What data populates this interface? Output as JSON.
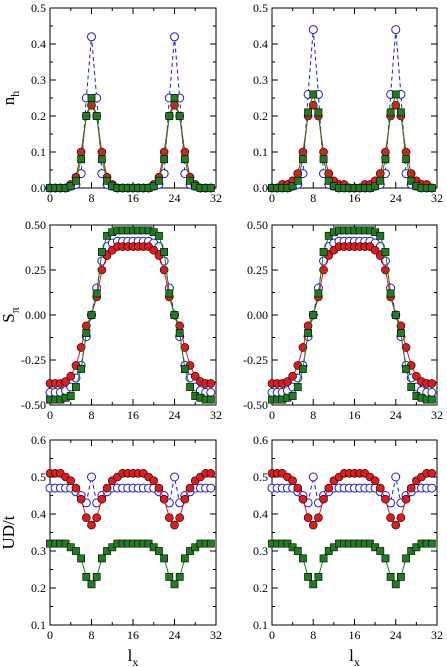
{
  "chart_data": [
    {
      "type": "line",
      "panel": "top-left",
      "ylabel": "n",
      "ylabel_sub": "h",
      "xlim": [
        0,
        32
      ],
      "ylim": [
        0.0,
        0.5
      ],
      "xticks": [
        "0",
        "8",
        "16",
        "24",
        "32"
      ],
      "yticks": [
        "0.0",
        "0.1",
        "0.2",
        "0.3",
        "0.4",
        "0.5"
      ],
      "x": [
        0,
        1,
        2,
        3,
        4,
        5,
        6,
        7,
        8,
        9,
        10,
        11,
        12,
        13,
        14,
        15,
        16,
        17,
        18,
        19,
        20,
        21,
        22,
        23,
        24,
        25,
        26,
        27,
        28,
        29,
        30,
        31
      ],
      "series": [
        {
          "marker": "circle-open",
          "color": "#1a1adc",
          "linestyle": "dashed",
          "values": [
            0.0,
            0.0,
            0.0,
            0.0,
            0.005,
            0.01,
            0.04,
            0.25,
            0.42,
            0.25,
            0.04,
            0.01,
            0.005,
            0.0,
            0.0,
            0.0,
            0.0,
            0.0,
            0.0,
            0.0,
            0.005,
            0.01,
            0.04,
            0.25,
            0.42,
            0.25,
            0.04,
            0.01,
            0.005,
            0.0,
            0.0,
            0.0
          ]
        },
        {
          "marker": "circle-filled",
          "color": "#e31a1c",
          "linestyle": "solid",
          "values": [
            0.0,
            0.0,
            0.0,
            0.0,
            0.01,
            0.03,
            0.1,
            0.2,
            0.23,
            0.2,
            0.1,
            0.03,
            0.01,
            0.0,
            0.0,
            0.0,
            0.0,
            0.0,
            0.0,
            0.0,
            0.01,
            0.03,
            0.1,
            0.2,
            0.23,
            0.2,
            0.1,
            0.03,
            0.01,
            0.0,
            0.0,
            0.0
          ]
        },
        {
          "marker": "square-filled",
          "color": "#1e7d1e",
          "linestyle": "solid",
          "values": [
            0.0,
            0.0,
            0.0,
            0.0,
            0.005,
            0.02,
            0.08,
            0.2,
            0.25,
            0.2,
            0.08,
            0.02,
            0.005,
            0.0,
            0.0,
            0.0,
            0.0,
            0.0,
            0.0,
            0.0,
            0.005,
            0.02,
            0.08,
            0.2,
            0.25,
            0.2,
            0.08,
            0.02,
            0.005,
            0.0,
            0.0,
            0.0
          ]
        }
      ]
    },
    {
      "type": "line",
      "panel": "top-right",
      "xlim": [
        0,
        32
      ],
      "ylim": [
        0.0,
        0.5
      ],
      "xticks": [
        "0",
        "8",
        "16",
        "24",
        "32"
      ],
      "yticks": [
        "0.0",
        "0.1",
        "0.2",
        "0.3",
        "0.4",
        "0.5"
      ],
      "x": [
        0,
        1,
        2,
        3,
        4,
        5,
        6,
        7,
        8,
        9,
        10,
        11,
        12,
        13,
        14,
        15,
        16,
        17,
        18,
        19,
        20,
        21,
        22,
        23,
        24,
        25,
        26,
        27,
        28,
        29,
        30,
        31
      ],
      "series": [
        {
          "marker": "circle-open",
          "color": "#1a1adc",
          "linestyle": "dashed",
          "values": [
            0.0,
            0.0,
            0.0,
            0.0,
            0.005,
            0.01,
            0.04,
            0.26,
            0.44,
            0.26,
            0.04,
            0.01,
            0.005,
            0.0,
            0.0,
            0.0,
            0.0,
            0.0,
            0.0,
            0.0,
            0.005,
            0.01,
            0.04,
            0.26,
            0.44,
            0.26,
            0.04,
            0.01,
            0.005,
            0.0,
            0.0,
            0.0
          ]
        },
        {
          "marker": "circle-filled",
          "color": "#e31a1c",
          "linestyle": "solid",
          "values": [
            0.0,
            0.0,
            0.01,
            0.01,
            0.02,
            0.04,
            0.1,
            0.2,
            0.23,
            0.2,
            0.1,
            0.04,
            0.02,
            0.01,
            0.01,
            0.0,
            0.0,
            0.0,
            0.01,
            0.01,
            0.02,
            0.04,
            0.1,
            0.2,
            0.23,
            0.2,
            0.1,
            0.04,
            0.02,
            0.01,
            0.01,
            0.0
          ]
        },
        {
          "marker": "square-filled",
          "color": "#1e7d1e",
          "linestyle": "solid",
          "values": [
            0.0,
            0.0,
            0.0,
            0.0,
            0.005,
            0.02,
            0.08,
            0.21,
            0.26,
            0.21,
            0.08,
            0.02,
            0.005,
            0.0,
            0.0,
            0.0,
            0.0,
            0.0,
            0.0,
            0.0,
            0.005,
            0.02,
            0.08,
            0.21,
            0.26,
            0.21,
            0.08,
            0.02,
            0.005,
            0.0,
            0.0,
            0.0
          ]
        }
      ]
    },
    {
      "type": "line",
      "panel": "middle-left",
      "ylabel": "S",
      "ylabel_sub": "π",
      "xlim": [
        0,
        32
      ],
      "ylim": [
        -0.5,
        0.5
      ],
      "xticks": [
        "0",
        "8",
        "16",
        "24",
        "32"
      ],
      "yticks": [
        "-0.50",
        "-0.25",
        "0.00",
        "0.25",
        "0.50"
      ],
      "x": [
        0,
        1,
        2,
        3,
        4,
        5,
        6,
        7,
        8,
        9,
        10,
        11,
        12,
        13,
        14,
        15,
        16,
        17,
        18,
        19,
        20,
        21,
        22,
        23,
        24,
        25,
        26,
        27,
        28,
        29,
        30,
        31
      ],
      "series": [
        {
          "marker": "circle-open",
          "color": "#1a1adc",
          "linestyle": "dashed",
          "values": [
            -0.43,
            -0.43,
            -0.43,
            -0.42,
            -0.4,
            -0.35,
            -0.28,
            -0.12,
            0.0,
            0.15,
            0.3,
            0.38,
            0.4,
            0.41,
            0.41,
            0.41,
            0.41,
            0.41,
            0.41,
            0.41,
            0.4,
            0.38,
            0.3,
            0.15,
            0.0,
            -0.12,
            -0.28,
            -0.35,
            -0.4,
            -0.42,
            -0.43,
            -0.43
          ]
        },
        {
          "marker": "circle-filled",
          "color": "#e31a1c",
          "linestyle": "solid",
          "values": [
            -0.38,
            -0.38,
            -0.38,
            -0.37,
            -0.34,
            -0.28,
            -0.18,
            -0.06,
            0.0,
            0.1,
            0.25,
            0.33,
            0.36,
            0.38,
            0.38,
            0.38,
            0.38,
            0.38,
            0.38,
            0.38,
            0.36,
            0.33,
            0.25,
            0.1,
            0.0,
            -0.06,
            -0.18,
            -0.28,
            -0.34,
            -0.37,
            -0.38,
            -0.38
          ]
        },
        {
          "marker": "square-filled",
          "color": "#1e7d1e",
          "linestyle": "solid",
          "values": [
            -0.47,
            -0.47,
            -0.47,
            -0.46,
            -0.45,
            -0.4,
            -0.3,
            -0.1,
            0.0,
            0.12,
            0.35,
            0.44,
            0.46,
            0.47,
            0.47,
            0.47,
            0.47,
            0.47,
            0.47,
            0.47,
            0.46,
            0.44,
            0.35,
            0.12,
            0.0,
            -0.1,
            -0.3,
            -0.4,
            -0.45,
            -0.46,
            -0.47,
            -0.47
          ]
        }
      ]
    },
    {
      "type": "line",
      "panel": "middle-right",
      "xlim": [
        0,
        32
      ],
      "ylim": [
        -0.5,
        0.5
      ],
      "xticks": [
        "0",
        "8",
        "16",
        "24",
        "32"
      ],
      "yticks": [
        "-0.50",
        "-0.25",
        "0.00",
        "0.25",
        "0.50"
      ],
      "x": [
        0,
        1,
        2,
        3,
        4,
        5,
        6,
        7,
        8,
        9,
        10,
        11,
        12,
        13,
        14,
        15,
        16,
        17,
        18,
        19,
        20,
        21,
        22,
        23,
        24,
        25,
        26,
        27,
        28,
        29,
        30,
        31
      ],
      "series": [
        {
          "marker": "circle-open",
          "color": "#1a1adc",
          "linestyle": "dashed",
          "values": [
            -0.43,
            -0.43,
            -0.43,
            -0.42,
            -0.4,
            -0.35,
            -0.28,
            -0.12,
            0.0,
            0.15,
            0.3,
            0.38,
            0.4,
            0.41,
            0.41,
            0.41,
            0.41,
            0.41,
            0.41,
            0.41,
            0.4,
            0.38,
            0.3,
            0.15,
            0.0,
            -0.12,
            -0.28,
            -0.35,
            -0.4,
            -0.42,
            -0.43,
            -0.43
          ]
        },
        {
          "marker": "circle-filled",
          "color": "#e31a1c",
          "linestyle": "solid",
          "values": [
            -0.38,
            -0.38,
            -0.38,
            -0.37,
            -0.34,
            -0.28,
            -0.18,
            -0.06,
            0.0,
            0.1,
            0.25,
            0.33,
            0.36,
            0.38,
            0.38,
            0.38,
            0.38,
            0.38,
            0.38,
            0.38,
            0.36,
            0.33,
            0.25,
            0.1,
            0.0,
            -0.06,
            -0.18,
            -0.28,
            -0.34,
            -0.37,
            -0.38,
            -0.38
          ]
        },
        {
          "marker": "square-filled",
          "color": "#1e7d1e",
          "linestyle": "solid",
          "values": [
            -0.47,
            -0.47,
            -0.47,
            -0.46,
            -0.45,
            -0.4,
            -0.3,
            -0.1,
            0.0,
            0.12,
            0.35,
            0.44,
            0.46,
            0.47,
            0.47,
            0.47,
            0.47,
            0.47,
            0.47,
            0.47,
            0.46,
            0.44,
            0.35,
            0.12,
            0.0,
            -0.1,
            -0.3,
            -0.4,
            -0.45,
            -0.46,
            -0.47,
            -0.47
          ]
        }
      ]
    },
    {
      "type": "line",
      "panel": "bottom-left",
      "ylabel": "UD/t",
      "xlabel": "l",
      "xlabel_sub": "x",
      "xlim": [
        0,
        32
      ],
      "ylim": [
        0.1,
        0.6
      ],
      "xticks": [
        "0",
        "8",
        "16",
        "24",
        "32"
      ],
      "yticks": [
        "0.1",
        "0.2",
        "0.3",
        "0.4",
        "0.5",
        "0.6"
      ],
      "x": [
        0,
        1,
        2,
        3,
        4,
        5,
        6,
        7,
        8,
        9,
        10,
        11,
        12,
        13,
        14,
        15,
        16,
        17,
        18,
        19,
        20,
        21,
        22,
        23,
        24,
        25,
        26,
        27,
        28,
        29,
        30,
        31
      ],
      "series": [
        {
          "marker": "circle-open",
          "color": "#1a1adc",
          "linestyle": "dashed",
          "values": [
            0.47,
            0.47,
            0.47,
            0.47,
            0.47,
            0.46,
            0.45,
            0.43,
            0.5,
            0.43,
            0.45,
            0.46,
            0.47,
            0.47,
            0.47,
            0.47,
            0.47,
            0.47,
            0.47,
            0.47,
            0.47,
            0.46,
            0.45,
            0.43,
            0.5,
            0.43,
            0.45,
            0.46,
            0.47,
            0.47,
            0.47,
            0.47
          ]
        },
        {
          "marker": "circle-filled",
          "color": "#e31a1c",
          "linestyle": "solid",
          "values": [
            0.51,
            0.51,
            0.51,
            0.5,
            0.49,
            0.47,
            0.44,
            0.39,
            0.37,
            0.39,
            0.44,
            0.47,
            0.49,
            0.5,
            0.51,
            0.51,
            0.51,
            0.51,
            0.51,
            0.5,
            0.49,
            0.47,
            0.44,
            0.39,
            0.37,
            0.39,
            0.44,
            0.47,
            0.49,
            0.5,
            0.51,
            0.51
          ]
        },
        {
          "marker": "square-filled",
          "color": "#1e7d1e",
          "linestyle": "solid",
          "values": [
            0.32,
            0.32,
            0.32,
            0.32,
            0.31,
            0.3,
            0.28,
            0.23,
            0.21,
            0.23,
            0.28,
            0.3,
            0.31,
            0.32,
            0.32,
            0.32,
            0.32,
            0.32,
            0.32,
            0.32,
            0.31,
            0.3,
            0.28,
            0.23,
            0.21,
            0.23,
            0.28,
            0.3,
            0.31,
            0.32,
            0.32,
            0.32
          ]
        }
      ]
    },
    {
      "type": "line",
      "panel": "bottom-right",
      "xlabel": "l",
      "xlabel_sub": "x",
      "xlim": [
        0,
        32
      ],
      "ylim": [
        0.1,
        0.6
      ],
      "xticks": [
        "0",
        "8",
        "16",
        "24",
        "32"
      ],
      "yticks": [
        "0.1",
        "0.2",
        "0.3",
        "0.4",
        "0.5",
        "0.6"
      ],
      "x": [
        0,
        1,
        2,
        3,
        4,
        5,
        6,
        7,
        8,
        9,
        10,
        11,
        12,
        13,
        14,
        15,
        16,
        17,
        18,
        19,
        20,
        21,
        22,
        23,
        24,
        25,
        26,
        27,
        28,
        29,
        30,
        31
      ],
      "series": [
        {
          "marker": "circle-open",
          "color": "#1a1adc",
          "linestyle": "dashed",
          "values": [
            0.47,
            0.47,
            0.47,
            0.47,
            0.47,
            0.46,
            0.45,
            0.43,
            0.5,
            0.43,
            0.45,
            0.46,
            0.47,
            0.47,
            0.47,
            0.47,
            0.47,
            0.47,
            0.47,
            0.47,
            0.47,
            0.46,
            0.45,
            0.43,
            0.5,
            0.43,
            0.45,
            0.46,
            0.47,
            0.47,
            0.47,
            0.47
          ]
        },
        {
          "marker": "circle-filled",
          "color": "#e31a1c",
          "linestyle": "solid",
          "values": [
            0.51,
            0.51,
            0.51,
            0.5,
            0.49,
            0.47,
            0.44,
            0.39,
            0.37,
            0.39,
            0.44,
            0.47,
            0.49,
            0.5,
            0.51,
            0.51,
            0.51,
            0.51,
            0.51,
            0.5,
            0.49,
            0.47,
            0.44,
            0.39,
            0.37,
            0.39,
            0.44,
            0.47,
            0.49,
            0.5,
            0.51,
            0.51
          ]
        },
        {
          "marker": "square-filled",
          "color": "#1e7d1e",
          "linestyle": "solid",
          "values": [
            0.32,
            0.32,
            0.32,
            0.32,
            0.31,
            0.3,
            0.28,
            0.23,
            0.21,
            0.23,
            0.28,
            0.3,
            0.31,
            0.32,
            0.32,
            0.32,
            0.32,
            0.32,
            0.32,
            0.32,
            0.31,
            0.3,
            0.28,
            0.23,
            0.21,
            0.23,
            0.28,
            0.3,
            0.31,
            0.32,
            0.32,
            0.32
          ]
        }
      ]
    }
  ]
}
